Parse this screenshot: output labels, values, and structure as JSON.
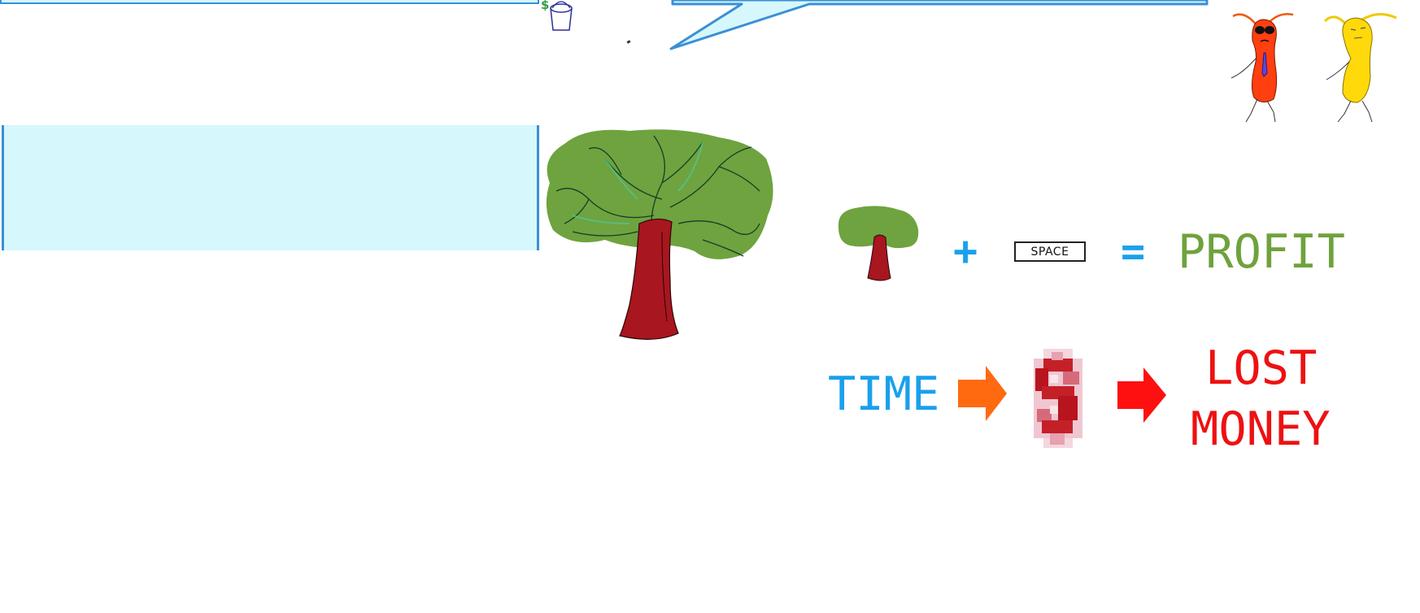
{
  "scene": {
    "shop_icon_symbol": "$",
    "formula_row1": {
      "plus": "+",
      "key_label": "SPACE",
      "equals": "=",
      "result": "PROFIT"
    },
    "formula_row2": {
      "time": "TIME",
      "lost_line1": "LOST",
      "lost_line2": "MONEY"
    }
  },
  "colors": {
    "box_fill": "#d6f7fb",
    "box_border": "#3a8fd6",
    "blue_text": "#1aa0ec",
    "green_text": "#6fa23c",
    "red_text": "#ee1111",
    "orange_arrow": "#ff6a10",
    "tree_leaves": "#6ea33f",
    "tree_trunk": "#a8161f"
  }
}
